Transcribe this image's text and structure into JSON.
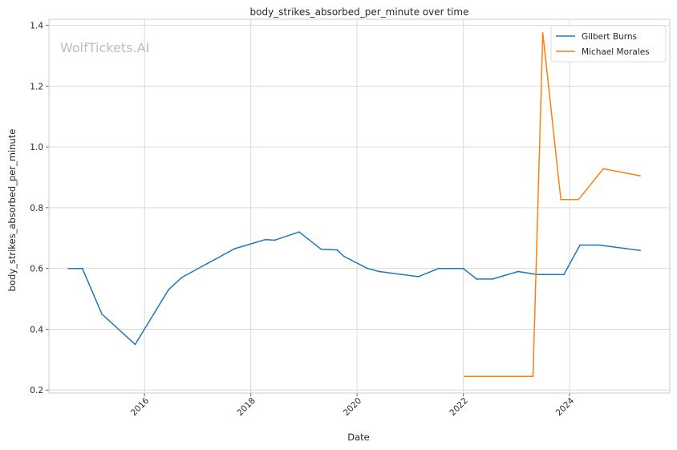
{
  "chart_data": {
    "type": "line",
    "title": "body_strikes_absorbed_per_minute over time",
    "xlabel": "Date",
    "ylabel": "body_strikes_absorbed_per_minute",
    "watermark": "WolfTickets.AI",
    "xlim": [
      "2014-03-15",
      "2025-11-20"
    ],
    "ylim": [
      0.19,
      1.42
    ],
    "x_ticks": [
      {
        "date": "2016-01-01",
        "label": "2016"
      },
      {
        "date": "2018-01-01",
        "label": "2018"
      },
      {
        "date": "2020-01-01",
        "label": "2020"
      },
      {
        "date": "2022-01-01",
        "label": "2022"
      },
      {
        "date": "2024-01-01",
        "label": "2024"
      }
    ],
    "y_ticks": [
      {
        "value": 0.2,
        "label": "0.2"
      },
      {
        "value": 0.4,
        "label": "0.4"
      },
      {
        "value": 0.6,
        "label": "0.6"
      },
      {
        "value": 0.8,
        "label": "0.8"
      },
      {
        "value": 1.0,
        "label": "1.0"
      },
      {
        "value": 1.2,
        "label": "1.2"
      },
      {
        "value": 1.4,
        "label": "1.4"
      }
    ],
    "grid": true,
    "legend_position": "top-right",
    "series": [
      {
        "name": "Gilbert Burns",
        "color": "#1f77b4",
        "points": [
          [
            "2014-07-28",
            0.6
          ],
          [
            "2014-10-31",
            0.6
          ],
          [
            "2015-03-14",
            0.45
          ],
          [
            "2015-10-29",
            0.35
          ],
          [
            "2016-06-14",
            0.53
          ],
          [
            "2016-09-12",
            0.57
          ],
          [
            "2017-09-12",
            0.665
          ],
          [
            "2018-04-11",
            0.695
          ],
          [
            "2018-06-14",
            0.693
          ],
          [
            "2018-11-29",
            0.72
          ],
          [
            "2019-04-30",
            0.663
          ],
          [
            "2019-08-17",
            0.661
          ],
          [
            "2019-10-02",
            0.64
          ],
          [
            "2020-03-13",
            0.6
          ],
          [
            "2020-06-01",
            0.59
          ],
          [
            "2021-02-25",
            0.573
          ],
          [
            "2021-07-15",
            0.6
          ],
          [
            "2021-12-31",
            0.6
          ],
          [
            "2022-04-02",
            0.565
          ],
          [
            "2022-07-20",
            0.565
          ],
          [
            "2023-01-13",
            0.59
          ],
          [
            "2023-05-24",
            0.58
          ],
          [
            "2023-11-23",
            0.58
          ],
          [
            "2024-03-13",
            0.677
          ],
          [
            "2024-07-22",
            0.677
          ],
          [
            "2025-04-30",
            0.659
          ]
        ]
      },
      {
        "name": "Michael Morales",
        "color": "#ff7f0e",
        "points": [
          [
            "2022-01-10",
            0.245
          ],
          [
            "2023-04-25",
            0.245
          ],
          [
            "2023-07-01",
            1.375
          ],
          [
            "2023-11-02",
            0.827
          ],
          [
            "2024-03-03",
            0.827
          ],
          [
            "2024-08-20",
            0.928
          ],
          [
            "2025-04-30",
            0.905
          ]
        ]
      }
    ]
  }
}
